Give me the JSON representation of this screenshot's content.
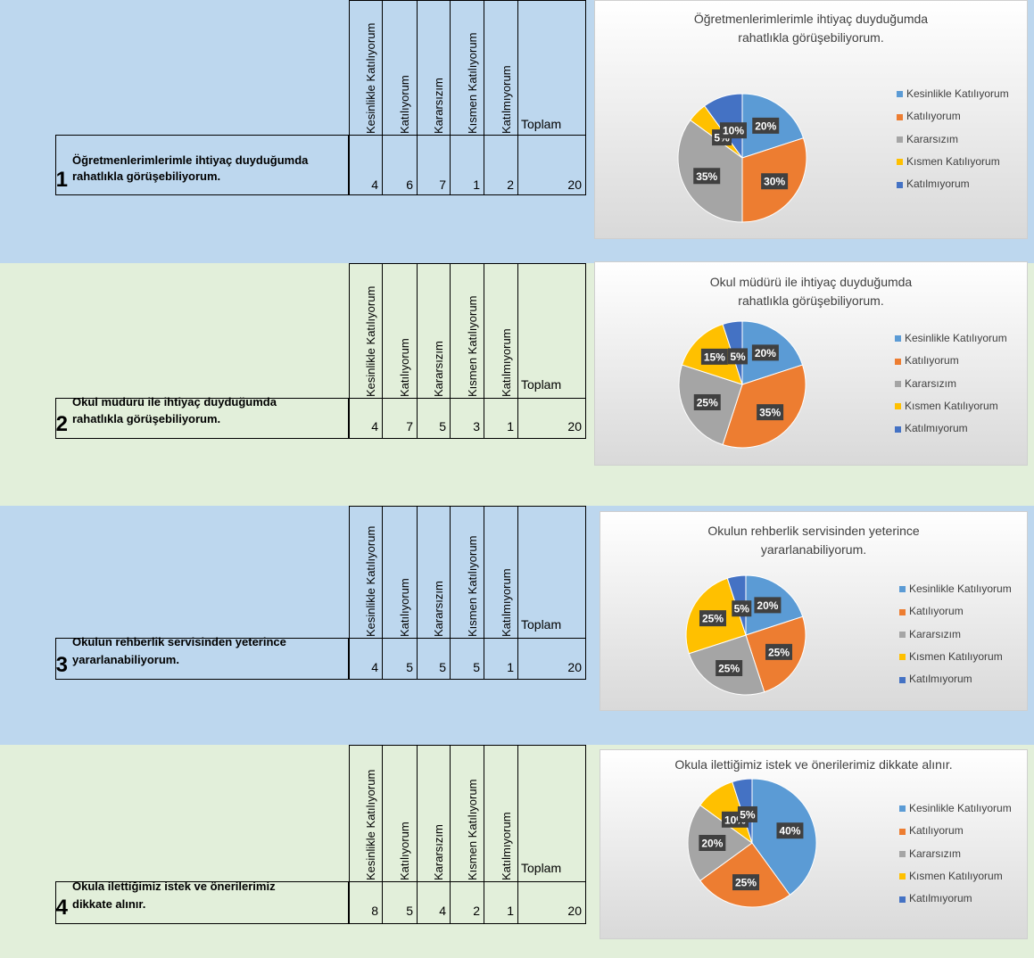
{
  "columns": [
    "Kesinlikle Katılıyorum",
    "Katılıyorum",
    "Kararsızım",
    "Kısmen Katılıyorum",
    "Katılmıyorum"
  ],
  "total_label": "Toplam",
  "colors": [
    "#5b9bd5",
    "#ed7d31",
    "#a5a5a5",
    "#ffc000",
    "#4472c4"
  ],
  "questions": [
    {
      "number": "1",
      "line1": "Öğretmenlerimlerimle ihtiyaç duyduğumda",
      "line2": "rahatlıkla görüşebiliyorum.",
      "values": [
        "4",
        "6",
        "7",
        "1",
        "2"
      ],
      "total": "20"
    },
    {
      "number": "2",
      "line1": "Okul müdürü ile ihtiyaç duyduğumda",
      "line2": "rahatlıkla görüşebiliyorum.",
      "values": [
        "4",
        "7",
        "5",
        "3",
        "1"
      ],
      "total": "20"
    },
    {
      "number": "3",
      "line1": "Okulun rehberlik servisinden yeterince",
      "line2": "yararlanabiliyorum.",
      "values": [
        "4",
        "5",
        "5",
        "5",
        "1"
      ],
      "total": "20"
    },
    {
      "number": "4",
      "line1": "Okula ilettiğimiz istek ve önerilerimiz",
      "line2": "dikkate alınır.",
      "values": [
        "8",
        "5",
        "4",
        "2",
        "1"
      ],
      "total": "20"
    }
  ],
  "chart_data": [
    {
      "type": "pie",
      "title_lines": [
        "Öğretmenlerimlerimle ihtiyaç duyduğumda",
        "rahatlıkla görüşebiliyorum."
      ],
      "categories": [
        "Kesinlikle Katılıyorum",
        "Katılıyorum",
        "Kararsızım",
        "Kısmen Katılıyorum",
        "Katılmıyorum"
      ],
      "values": [
        20,
        30,
        35,
        5,
        10
      ],
      "labels": [
        "20%",
        "30%",
        "35%",
        "5%",
        "10%"
      ],
      "legend": "right"
    },
    {
      "type": "pie",
      "title_lines": [
        "Okul müdürü ile ihtiyaç duyduğumda",
        "rahatlıkla görüşebiliyorum."
      ],
      "categories": [
        "Kesinlikle Katılıyorum",
        "Katılıyorum",
        "Kararsızım",
        "Kısmen Katılıyorum",
        "Katılmıyorum"
      ],
      "values": [
        20,
        35,
        25,
        15,
        5
      ],
      "labels": [
        "20%",
        "35%",
        "25%",
        "15%",
        "5%"
      ],
      "legend": "right"
    },
    {
      "type": "pie",
      "title_lines": [
        "Okulun rehberlik servisinden yeterince",
        "yararlanabiliyorum."
      ],
      "categories": [
        "Kesinlikle Katılıyorum",
        "Katılıyorum",
        "Kararsızım",
        "Kısmen Katılıyorum",
        "Katılmıyorum"
      ],
      "values": [
        20,
        25,
        25,
        25,
        5
      ],
      "labels": [
        "20%",
        "25%",
        "25%",
        "25%",
        "5%"
      ],
      "legend": "right"
    },
    {
      "type": "pie",
      "title_lines": [
        "Okula ilettiğimiz istek ve önerilerimiz dikkate alınır."
      ],
      "categories": [
        "Kesinlikle Katılıyorum",
        "Katılıyorum",
        "Kararsızım",
        "Kısmen Katılıyorum",
        "Katılmıyorum"
      ],
      "values": [
        40,
        25,
        20,
        10,
        5
      ],
      "labels": [
        "40%",
        "25%",
        "20%",
        "10%",
        "5%"
      ],
      "legend": "right"
    }
  ]
}
